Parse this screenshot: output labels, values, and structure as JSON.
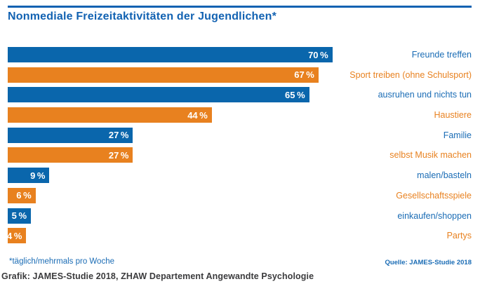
{
  "page": {
    "title": "Nonmediale Freizeitaktivitäten der Jugendlichen*",
    "footnote": "*täglich/mehrmals pro Woche",
    "source": "Quelle: JAMES-Studie 2018",
    "caption": "Grafik: JAMES-Studie 2018, ZHAW Departement Angewandte Psychologie"
  },
  "colors": {
    "bar_blue": "#0A66AC",
    "bar_orange": "#E8811F",
    "label_blue": "#1A6CB5",
    "label_orange": "#E8811F",
    "title_blue": "#1262B2",
    "value_text_white": "#FFFFFF",
    "caption_gray": "#3B3B3D",
    "background": "#FFFFFF"
  },
  "chart_data": {
    "type": "bar",
    "orientation": "horizontal",
    "title": "Nonmediale Freizeitaktivitäten der Jugendlichen*",
    "categories": [
      "Freunde treffen",
      "Sport treiben (ohne Schulsport)",
      "ausruhen und nichts tun",
      "Haustiere",
      "Familie",
      "selbst Musik machen",
      "malen/basteln",
      "Gesellschaftsspiele",
      "einkaufen/shoppen",
      "Partys"
    ],
    "values": [
      70,
      67,
      65,
      44,
      27,
      27,
      9,
      6,
      5,
      4
    ],
    "value_labels": [
      "70 %",
      "67 %",
      "65 %",
      "44 %",
      "27 %",
      "27 %",
      "9 %",
      "6 %",
      "5 %",
      "4 %"
    ],
    "xlabel": "",
    "ylabel": "",
    "xlim": [
      0,
      100
    ],
    "grid": false,
    "legend": false,
    "bar_color_pattern": [
      "#0A66AC",
      "#E8811F"
    ],
    "category_label_color_pattern": [
      "#1A6CB5",
      "#E8811F"
    ],
    "value_label_position": "inside-end",
    "category_label_position": "right",
    "footnote": "*täglich/mehrmals pro Woche",
    "source": "Quelle: JAMES-Studie 2018",
    "caption": "Grafik: JAMES-Studie 2018, ZHAW Departement Angewandte Psychologie"
  }
}
